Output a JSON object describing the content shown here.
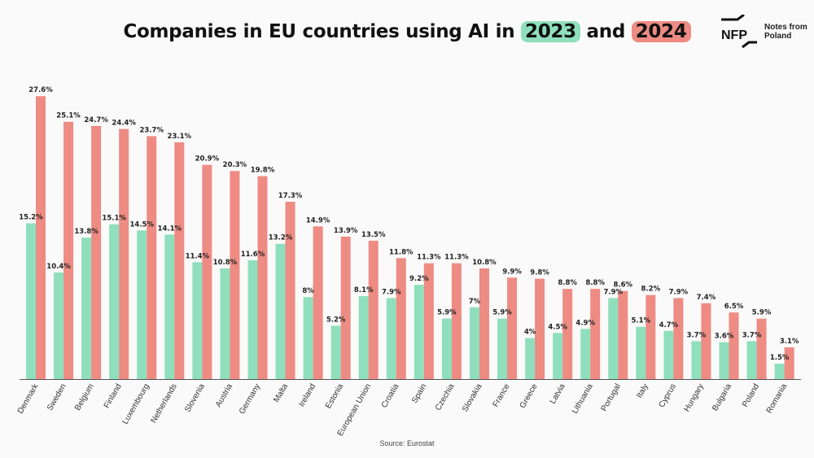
{
  "title": {
    "prefix": "Companies in EU countries using AI in ",
    "year1": "2023",
    "middle": " and ",
    "year2": "2024"
  },
  "logo": {
    "mark_text": "NFP",
    "line1": "Notes from",
    "line2": "Poland"
  },
  "source": "Source: Eurostat",
  "colors": {
    "2023": "#8fdfbc",
    "2024": "#ee8b83",
    "axis": "#555555"
  },
  "chart_data": {
    "type": "bar",
    "title": "Companies in EU countries using AI in 2023 and 2024",
    "xlabel": "",
    "ylabel": "",
    "ylim": [
      0,
      30
    ],
    "categories": [
      "Denmark",
      "Sweden",
      "Belgium",
      "Finland",
      "Luxembourg",
      "Netherlands",
      "Slovenia",
      "Austria",
      "Germany",
      "Malta",
      "Ireland",
      "Estonia",
      "European Union",
      "Croatia",
      "Spain",
      "Czechia",
      "Slovakia",
      "France",
      "Greece",
      "Latvia",
      "Lithuania",
      "Portugal",
      "Italy",
      "Cyprus",
      "Hungary",
      "Bulgaria",
      "Poland",
      "Romania"
    ],
    "series": [
      {
        "name": "2023",
        "values": [
          15.2,
          10.4,
          13.8,
          15.1,
          14.5,
          14.1,
          11.4,
          10.8,
          11.6,
          13.2,
          8,
          5.2,
          8.1,
          7.9,
          9.2,
          5.9,
          7,
          5.9,
          4,
          4.5,
          4.9,
          7.9,
          5.1,
          4.7,
          3.7,
          3.6,
          3.7,
          1.5
        ],
        "labels": [
          "15.2%",
          "10.4%",
          "13.8%",
          "15.1%",
          "14.5%",
          "14.1%",
          "11.4%",
          "10.8%",
          "11.6%",
          "13.2%",
          "8%",
          "5.2%",
          "8.1%",
          "7.9%",
          "9.2%",
          "5.9%",
          "7%",
          "5.9%",
          "4%",
          "4.5%",
          "4.9%",
          "7.9%",
          "5.1%",
          "4.7%",
          "3.7%",
          "3.6%",
          "3.7%",
          "1.5%"
        ]
      },
      {
        "name": "2024",
        "values": [
          27.6,
          25.1,
          24.7,
          24.4,
          23.7,
          23.1,
          20.9,
          20.3,
          19.8,
          17.3,
          14.9,
          13.9,
          13.5,
          11.8,
          11.3,
          11.3,
          10.8,
          9.9,
          9.8,
          8.8,
          8.8,
          8.6,
          8.2,
          7.9,
          7.4,
          6.5,
          5.9,
          3.1
        ],
        "labels": [
          "27.6%",
          "25.1%",
          "24.7%",
          "24.4%",
          "23.7%",
          "23.1%",
          "20.9%",
          "20.3%",
          "19.8%",
          "17.3%",
          "14.9%",
          "13.9%",
          "13.5%",
          "11.8%",
          "11.3%",
          "11.3%",
          "10.8%",
          "9.9%",
          "9.8%",
          "8.8%",
          "8.8%",
          "8.6%",
          "8.2%",
          "7.9%",
          "7.4%",
          "6.5%",
          "5.9%",
          "3.1%"
        ]
      }
    ],
    "grid": false,
    "legend": "none (years highlighted in title)"
  }
}
